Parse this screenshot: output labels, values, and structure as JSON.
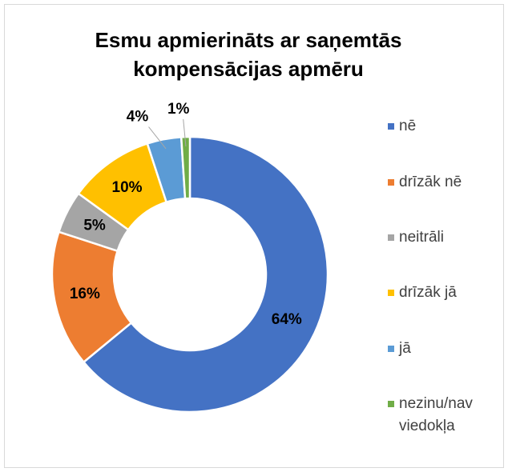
{
  "chart_data": {
    "type": "donut",
    "title": "Esmu apmierināts ar saņemtās kompensācijas apmēru",
    "categories": [
      "nē",
      "drīzāk nē",
      "neitrāli",
      "drīzāk jā",
      "jā",
      "nezinu/nav viedokļa"
    ],
    "values": [
      64,
      16,
      5,
      10,
      4,
      1
    ],
    "value_labels": [
      "64%",
      "16%",
      "5%",
      "10%",
      "4%",
      "1%"
    ],
    "colors": [
      "#4472c4",
      "#ed7d31",
      "#a5a5a5",
      "#ffc000",
      "#5b9bd5",
      "#70ad47"
    ],
    "legend": "right"
  }
}
